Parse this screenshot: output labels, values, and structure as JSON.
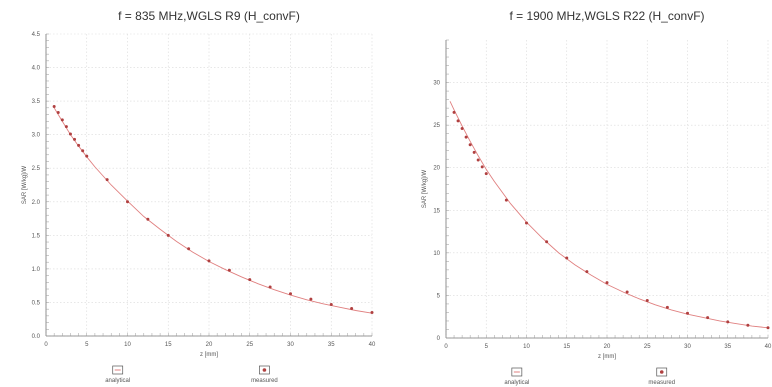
{
  "chart_data": [
    {
      "type": "scatter",
      "title": "f = 835 MHz,WGLS R9 (H_convF)",
      "xlabel": "z [mm]",
      "ylabel": "SAR [W/kg]/W",
      "xlim": [
        0,
        40
      ],
      "ylim": [
        0,
        4.5
      ],
      "xticks": [
        0,
        5,
        10,
        15,
        20,
        25,
        30,
        35,
        40
      ],
      "yticks": [
        0,
        0.5,
        1,
        1.5,
        2,
        2.5,
        3,
        3.5,
        4,
        4.5
      ],
      "xtick_labels": [
        "0",
        "5",
        "10",
        "15",
        "20",
        "25",
        "30",
        "35",
        "40"
      ],
      "ytick_labels": [
        "0.0",
        "0.5",
        "1.0",
        "1.5",
        "2.0",
        "2.5",
        "3.0",
        "3.5",
        "4.0",
        "4.5"
      ],
      "grid": true,
      "legend_position": "bottom",
      "series": [
        {
          "name": "analytical",
          "type": "line",
          "x": [
            1,
            2,
            3,
            4,
            5,
            6,
            8,
            10,
            12,
            14,
            16,
            18,
            20,
            22,
            24,
            26,
            28,
            30,
            32,
            34,
            36,
            38,
            40
          ],
          "values": [
            3.4,
            3.2,
            3.0,
            2.83,
            2.67,
            2.52,
            2.25,
            2.01,
            1.78,
            1.59,
            1.41,
            1.25,
            1.11,
            0.99,
            0.88,
            0.78,
            0.69,
            0.61,
            0.54,
            0.48,
            0.43,
            0.38,
            0.34
          ],
          "color": "#e08080"
        },
        {
          "name": "measured",
          "type": "scatter",
          "x": [
            1,
            1.5,
            2,
            2.5,
            3,
            3.5,
            4,
            4.5,
            5,
            7.5,
            10,
            12.5,
            15,
            17.5,
            20,
            22.5,
            25,
            27.5,
            30,
            32.5,
            35,
            37.5,
            40
          ],
          "values": [
            3.42,
            3.33,
            3.22,
            3.12,
            3.01,
            2.93,
            2.84,
            2.76,
            2.68,
            2.33,
            2.0,
            1.74,
            1.5,
            1.3,
            1.12,
            0.98,
            0.84,
            0.73,
            0.63,
            0.55,
            0.47,
            0.41,
            0.35
          ],
          "color": "#b04040"
        }
      ]
    },
    {
      "type": "scatter",
      "title": "f = 1900 MHz,WGLS R22 (H_convF)",
      "xlabel": "z [mm]",
      "ylabel": "SAR [W/kg]/W",
      "xlim": [
        0,
        40
      ],
      "ylim": [
        0,
        35
      ],
      "xticks": [
        0,
        5,
        10,
        15,
        20,
        25,
        30,
        35,
        40
      ],
      "yticks": [
        0,
        5,
        10,
        15,
        20,
        25,
        30
      ],
      "xtick_labels": [
        "0",
        "5",
        "10",
        "15",
        "20",
        "25",
        "30",
        "35",
        "40"
      ],
      "ytick_labels": [
        "0",
        "5",
        "10",
        "15",
        "20",
        "25",
        "30"
      ],
      "grid": true,
      "legend_position": "bottom",
      "series": [
        {
          "name": "analytical",
          "type": "line",
          "x": [
            0.5,
            1,
            2,
            3,
            4,
            5,
            6,
            8,
            10,
            12,
            14,
            16,
            18,
            20,
            22,
            24,
            26,
            28,
            30,
            32,
            34,
            36,
            38,
            40
          ],
          "values": [
            27.8,
            26.8,
            24.9,
            23.1,
            21.4,
            19.8,
            18.4,
            15.8,
            13.6,
            11.7,
            10.0,
            8.6,
            7.4,
            6.3,
            5.4,
            4.6,
            3.9,
            3.3,
            2.8,
            2.4,
            2.0,
            1.7,
            1.4,
            1.2
          ],
          "color": "#e08080"
        },
        {
          "name": "measured",
          "type": "scatter",
          "x": [
            1,
            1.5,
            2,
            2.5,
            3,
            3.5,
            4,
            4.5,
            5,
            7.5,
            10,
            12.5,
            15,
            17.5,
            20,
            22.5,
            25,
            27.5,
            30,
            32.5,
            35,
            37.5,
            40
          ],
          "values": [
            26.5,
            25.5,
            24.6,
            23.6,
            22.7,
            21.8,
            20.9,
            20.1,
            19.3,
            16.2,
            13.5,
            11.3,
            9.4,
            7.8,
            6.5,
            5.4,
            4.4,
            3.6,
            2.9,
            2.4,
            1.9,
            1.5,
            1.2
          ],
          "color": "#b04040"
        }
      ]
    }
  ]
}
